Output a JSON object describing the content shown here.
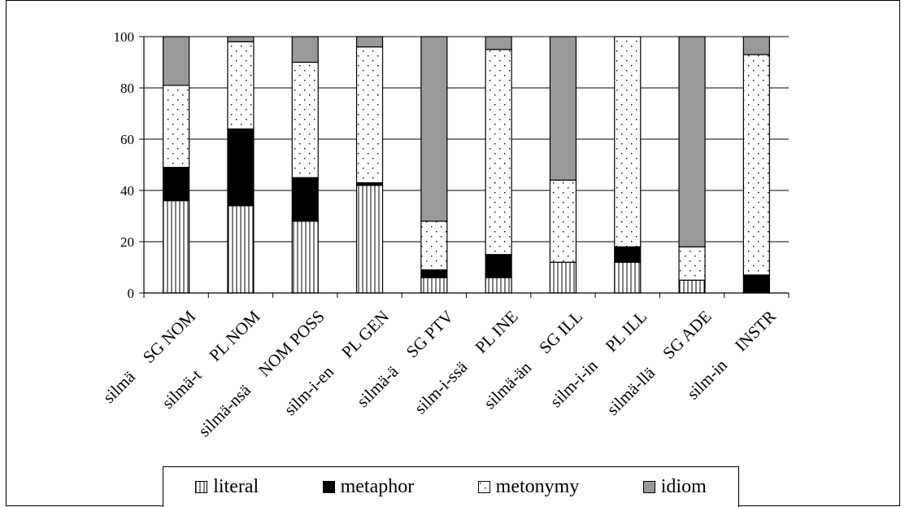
{
  "chart_data": {
    "type": "bar",
    "stacked": true,
    "categories": [
      "silmä SG NOM",
      "silmä-t PL NOM",
      "silmä-nsä NOM POSS",
      "silm-i-en PL GEN",
      "silmä-ä SG PTV",
      "silm-i-ssä PL INE",
      "silmä-än SG ILL",
      "silm-i-in PL ILL",
      "silmä-llä SG ADE",
      "silm-in INSTR"
    ],
    "category_labels": [
      {
        "word": "silmä",
        "gloss": "SG NOM"
      },
      {
        "word": "silmä-t",
        "gloss": "PL NOM"
      },
      {
        "word": "silmä-nsä",
        "gloss": "NOM POSS"
      },
      {
        "word": "silm-i-en",
        "gloss": "PL GEN"
      },
      {
        "word": "silmä-ä",
        "gloss": "SG PTV"
      },
      {
        "word": "silm-i-ssä",
        "gloss": "PL INE"
      },
      {
        "word": "silmä-än",
        "gloss": "SG ILL"
      },
      {
        "word": "silm-i-in",
        "gloss": "PL ILL"
      },
      {
        "word": "silmä-llä",
        "gloss": "SG ADE"
      },
      {
        "word": "silm-in",
        "gloss": "INSTR"
      }
    ],
    "series": [
      {
        "name": "literal",
        "pattern": "vertical-stripes",
        "values": [
          36,
          34,
          28,
          42,
          6,
          6,
          12,
          12,
          5,
          0
        ]
      },
      {
        "name": "metaphor",
        "color": "#000000",
        "values": [
          13,
          30,
          17,
          1,
          3,
          9,
          0,
          6,
          0,
          7
        ]
      },
      {
        "name": "metonymy",
        "pattern": "dots",
        "values": [
          32,
          34,
          45,
          53,
          19,
          80,
          32,
          82,
          13,
          86
        ]
      },
      {
        "name": "idiom",
        "color": "#999999",
        "values": [
          19,
          2,
          10,
          4,
          72,
          5,
          56,
          0,
          82,
          7
        ]
      }
    ],
    "ylim": [
      0,
      100
    ],
    "yticks": [
      "0",
      "20",
      "40",
      "60",
      "80",
      "100"
    ],
    "grid": true,
    "legend_position": "bottom"
  }
}
